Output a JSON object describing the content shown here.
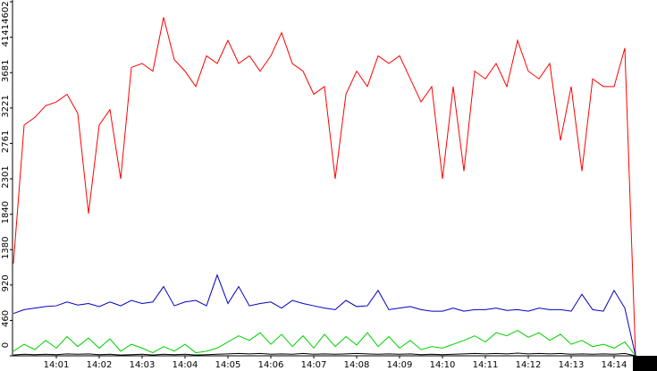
{
  "chart_data": {
    "type": "line",
    "categories": [
      null,
      null,
      null,
      null,
      "14:01",
      null,
      null,
      null,
      "14:02",
      null,
      null,
      null,
      "14:03",
      null,
      null,
      null,
      "14:04",
      null,
      null,
      null,
      "14:05",
      null,
      null,
      null,
      "14:06",
      null,
      null,
      null,
      "14:07",
      null,
      null,
      null,
      "14:08",
      null,
      null,
      null,
      "14:09",
      null,
      null,
      null,
      "14:10",
      null,
      null,
      null,
      "14:11",
      null,
      null,
      null,
      "14:12",
      null,
      null,
      null,
      "14:13",
      null,
      null,
      null,
      "14:14",
      null,
      null
    ],
    "ylim": [
      0,
      4602
    ],
    "yticks": [
      0,
      460,
      920,
      1380,
      1840,
      2301,
      2761,
      3221,
      3681,
      4141,
      4602
    ],
    "series": [
      {
        "name": "red",
        "color": "#ff0000",
        "values": [
          1200,
          3000,
          3100,
          3250,
          3300,
          3400,
          3150,
          1850,
          3000,
          3200,
          2300,
          3750,
          3800,
          3700,
          4400,
          3850,
          3700,
          3500,
          3900,
          3800,
          4100,
          3800,
          3900,
          3700,
          3900,
          4200,
          3800,
          3700,
          3400,
          3500,
          2300,
          3400,
          3700,
          3500,
          3900,
          3800,
          3900,
          3600,
          3300,
          3500,
          2300,
          3500,
          2400,
          3700,
          3600,
          3800,
          3500,
          4100,
          3700,
          3600,
          3800,
          2800,
          3500,
          2400,
          3600,
          3500,
          3500,
          4000,
          0
        ]
      },
      {
        "name": "blue",
        "color": "#0000c0",
        "values": [
          550,
          600,
          620,
          640,
          650,
          700,
          660,
          680,
          640,
          700,
          650,
          720,
          680,
          700,
          900,
          650,
          700,
          720,
          650,
          1050,
          680,
          900,
          650,
          680,
          700,
          620,
          720,
          680,
          650,
          620,
          600,
          720,
          640,
          650,
          850,
          600,
          620,
          640,
          600,
          580,
          580,
          620,
          580,
          600,
          600,
          620,
          590,
          600,
          580,
          620,
          600,
          600,
          580,
          800,
          600,
          580,
          850,
          620,
          0
        ]
      },
      {
        "name": "green",
        "color": "#00d000",
        "values": [
          60,
          150,
          80,
          200,
          100,
          250,
          120,
          230,
          100,
          220,
          60,
          150,
          100,
          40,
          120,
          60,
          150,
          40,
          60,
          100,
          180,
          260,
          200,
          300,
          150,
          280,
          120,
          260,
          100,
          280,
          120,
          250,
          140,
          300,
          120,
          250,
          100,
          200,
          80,
          120,
          100,
          150,
          200,
          260,
          180,
          300,
          260,
          330,
          240,
          300,
          200,
          280,
          150,
          200,
          120,
          150,
          100,
          180,
          0
        ]
      },
      {
        "name": "black",
        "color": "#000000",
        "values": [
          10,
          20,
          15,
          20,
          15,
          25,
          20,
          25,
          15,
          20,
          10,
          15,
          20,
          10,
          20,
          15,
          20,
          10,
          15,
          20,
          25,
          30,
          25,
          30,
          20,
          25,
          20,
          30,
          20,
          25,
          20,
          25,
          30,
          25,
          20,
          25,
          20,
          25,
          15,
          20,
          15,
          20,
          25,
          30,
          25,
          30,
          25,
          35,
          25,
          30,
          25,
          30,
          20,
          25,
          20,
          25,
          20,
          30,
          0
        ]
      }
    ]
  }
}
